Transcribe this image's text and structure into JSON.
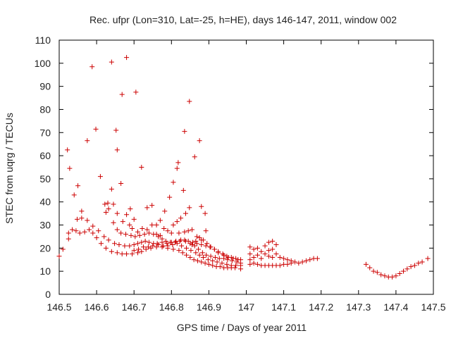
{
  "chart_data": {
    "type": "scatter",
    "title": "Rec. ufpr (Lon=310, Lat=-25, h=HE), days 146-147, 2011, window 002",
    "xlabel": "GPS time / Days of year 2011",
    "ylabel": "STEC from uqrg / TECUs",
    "xlim": [
      146.5,
      147.5
    ],
    "ylim": [
      0,
      110
    ],
    "xticks": [
      "146.5",
      "146.6",
      "146.7",
      "146.8",
      "146.9",
      "147",
      "147.1",
      "147.2",
      "147.3",
      "147.4",
      "147.5"
    ],
    "yticks": [
      "0",
      "10",
      "20",
      "30",
      "40",
      "50",
      "60",
      "70",
      "80",
      "90",
      "100",
      "110"
    ],
    "grid": false,
    "marker": "+",
    "color": "#cc0000",
    "series": [
      {
        "points": [
          [
            146.5,
            16.5
          ],
          [
            146.51,
            19.5
          ],
          [
            146.525,
            24.0
          ],
          [
            146.525,
            26.5
          ],
          [
            146.535,
            28.0
          ],
          [
            146.545,
            27.5
          ],
          [
            146.555,
            26.5
          ],
          [
            146.568,
            27.0
          ],
          [
            146.58,
            28.0
          ],
          [
            146.59,
            26.5
          ],
          [
            146.6,
            24.5
          ],
          [
            146.612,
            22.0
          ],
          [
            146.625,
            20.0
          ],
          [
            146.64,
            18.5
          ],
          [
            146.655,
            18.0
          ],
          [
            146.668,
            17.5
          ],
          [
            146.68,
            17.5
          ],
          [
            146.695,
            17.5
          ],
          [
            146.71,
            18.0
          ],
          [
            146.72,
            18.5
          ],
          [
            146.732,
            19.5
          ],
          [
            146.745,
            20.0
          ],
          [
            146.76,
            20.5
          ],
          [
            146.775,
            20.5
          ],
          [
            146.79,
            20.0
          ],
          [
            146.805,
            19.5
          ],
          [
            146.82,
            19.0
          ],
          [
            146.83,
            18.0
          ],
          [
            146.84,
            17.0
          ],
          [
            146.85,
            16.0
          ],
          [
            146.86,
            15.0
          ],
          [
            146.87,
            14.5
          ],
          [
            146.88,
            14.0
          ],
          [
            146.89,
            13.5
          ],
          [
            146.9,
            13.0
          ],
          [
            146.91,
            12.5
          ],
          [
            146.92,
            12.0
          ],
          [
            146.93,
            12.0
          ],
          [
            146.94,
            11.5
          ],
          [
            146.95,
            11.5
          ],
          [
            146.96,
            11.5
          ],
          [
            146.97,
            11.5
          ],
          [
            146.985,
            11.0
          ],
          [
            146.522,
            62.5
          ],
          [
            146.528,
            54.5
          ],
          [
            146.54,
            43.0
          ],
          [
            146.55,
            47.0
          ],
          [
            146.56,
            36.0
          ],
          [
            146.575,
            32.0
          ],
          [
            146.59,
            29.5
          ],
          [
            146.605,
            27.5
          ],
          [
            146.62,
            25.0
          ],
          [
            146.632,
            23.5
          ],
          [
            146.648,
            22.0
          ],
          [
            146.66,
            21.5
          ],
          [
            146.675,
            21.0
          ],
          [
            146.688,
            21.0
          ],
          [
            146.7,
            21.5
          ],
          [
            146.71,
            22.0
          ],
          [
            146.72,
            22.5
          ],
          [
            146.73,
            23.0
          ],
          [
            146.74,
            22.5
          ],
          [
            146.752,
            22.0
          ],
          [
            146.765,
            21.5
          ],
          [
            146.778,
            21.0
          ],
          [
            146.79,
            21.0
          ],
          [
            146.803,
            21.5
          ],
          [
            146.815,
            22.0
          ],
          [
            146.827,
            21.0
          ],
          [
            146.84,
            20.0
          ],
          [
            146.852,
            19.0
          ],
          [
            146.865,
            18.0
          ],
          [
            146.875,
            17.0
          ],
          [
            146.885,
            16.0
          ],
          [
            146.898,
            15.0
          ],
          [
            146.91,
            14.5
          ],
          [
            146.922,
            14.0
          ],
          [
            146.935,
            13.5
          ],
          [
            146.948,
            13.0
          ],
          [
            146.96,
            12.5
          ],
          [
            146.972,
            12.5
          ],
          [
            146.985,
            12.5
          ],
          [
            146.548,
            32.5
          ],
          [
            146.56,
            33.0
          ],
          [
            146.575,
            66.5
          ],
          [
            146.588,
            98.5
          ],
          [
            146.598,
            71.5
          ],
          [
            146.61,
            51.0
          ],
          [
            146.622,
            39.0
          ],
          [
            146.632,
            37.0
          ],
          [
            146.645,
            31.0
          ],
          [
            146.655,
            28.0
          ],
          [
            146.665,
            26.5
          ],
          [
            146.678,
            26.0
          ],
          [
            146.692,
            25.5
          ],
          [
            146.703,
            25.0
          ],
          [
            146.715,
            25.5
          ],
          [
            146.728,
            26.0
          ],
          [
            146.74,
            26.5
          ],
          [
            146.752,
            26.0
          ],
          [
            146.765,
            25.0
          ],
          [
            146.775,
            24.0
          ],
          [
            146.785,
            23.0
          ],
          [
            146.797,
            22.5
          ],
          [
            146.81,
            22.5
          ],
          [
            146.822,
            23.0
          ],
          [
            146.835,
            23.5
          ],
          [
            146.845,
            23.0
          ],
          [
            146.857,
            22.5
          ],
          [
            146.868,
            22.0
          ],
          [
            146.88,
            21.5
          ],
          [
            146.892,
            21.0
          ],
          [
            146.903,
            20.5
          ],
          [
            146.915,
            19.5
          ],
          [
            146.925,
            18.5
          ],
          [
            146.937,
            17.5
          ],
          [
            146.948,
            16.5
          ],
          [
            146.96,
            16.0
          ],
          [
            146.972,
            15.5
          ],
          [
            146.985,
            15.0
          ],
          [
            146.64,
            100.5
          ],
          [
            146.652,
            71.0
          ],
          [
            146.655,
            62.5
          ],
          [
            146.665,
            48.0
          ],
          [
            146.668,
            86.5
          ],
          [
            146.68,
            102.5
          ],
          [
            146.69,
            37.0
          ],
          [
            146.705,
            87.5
          ],
          [
            146.72,
            55.0
          ],
          [
            146.7,
            32.5
          ],
          [
            146.688,
            30.0
          ],
          [
            146.67,
            31.5
          ],
          [
            146.655,
            35.0
          ],
          [
            146.645,
            39.0
          ],
          [
            146.64,
            45.5
          ],
          [
            146.63,
            39.5
          ],
          [
            146.625,
            35.5
          ],
          [
            146.68,
            34.5
          ],
          [
            146.695,
            28.5
          ],
          [
            146.71,
            27.0
          ],
          [
            146.722,
            28.5
          ],
          [
            146.735,
            28.0
          ],
          [
            146.748,
            30.0
          ],
          [
            146.76,
            30.0
          ],
          [
            146.77,
            32.0
          ],
          [
            146.735,
            37.5
          ],
          [
            146.748,
            38.5
          ],
          [
            146.782,
            36.0
          ],
          [
            146.795,
            42.0
          ],
          [
            146.805,
            48.5
          ],
          [
            146.815,
            54.5
          ],
          [
            146.818,
            57.0
          ],
          [
            146.832,
            45.0
          ],
          [
            146.835,
            70.5
          ],
          [
            146.848,
            83.5
          ],
          [
            146.862,
            59.5
          ],
          [
            146.875,
            66.5
          ],
          [
            146.88,
            38.0
          ],
          [
            146.89,
            35.0
          ],
          [
            146.805,
            30.0
          ],
          [
            146.815,
            31.5
          ],
          [
            146.825,
            33.0
          ],
          [
            146.838,
            35.0
          ],
          [
            146.848,
            37.5
          ],
          [
            146.82,
            26.5
          ],
          [
            146.835,
            27.0
          ],
          [
            146.845,
            27.5
          ],
          [
            146.855,
            28.0
          ],
          [
            146.868,
            25.0
          ],
          [
            146.88,
            23.5
          ],
          [
            146.892,
            27.5
          ],
          [
            146.78,
            28.5
          ],
          [
            146.79,
            27.5
          ],
          [
            146.8,
            26.5
          ],
          [
            146.76,
            26.0
          ],
          [
            146.77,
            25.5
          ],
          [
            146.7,
            19.0
          ],
          [
            146.712,
            19.5
          ],
          [
            146.725,
            20.5
          ],
          [
            146.738,
            20.5
          ],
          [
            146.75,
            21.0
          ],
          [
            146.762,
            22.0
          ],
          [
            146.775,
            22.5
          ],
          [
            146.788,
            22.0
          ],
          [
            146.8,
            22.5
          ],
          [
            146.812,
            23.0
          ],
          [
            146.825,
            23.5
          ],
          [
            146.838,
            23.0
          ],
          [
            146.85,
            22.0
          ],
          [
            146.862,
            21.0
          ],
          [
            146.872,
            19.5
          ],
          [
            146.883,
            18.0
          ],
          [
            146.893,
            17.0
          ],
          [
            146.905,
            16.5
          ],
          [
            146.917,
            16.0
          ],
          [
            146.928,
            15.5
          ],
          [
            146.94,
            15.5
          ],
          [
            146.95,
            15.0
          ],
          [
            146.962,
            14.5
          ],
          [
            146.975,
            14.0
          ],
          [
            146.985,
            13.5
          ],
          [
            146.855,
            21.5
          ],
          [
            146.865,
            23.0
          ],
          [
            146.875,
            24.5
          ],
          [
            146.885,
            23.5
          ],
          [
            146.895,
            22.0
          ],
          [
            146.905,
            20.5
          ],
          [
            146.915,
            19.5
          ],
          [
            146.925,
            18.0
          ],
          [
            146.94,
            17.0
          ],
          [
            146.952,
            16.0
          ],
          [
            146.965,
            15.5
          ],
          [
            146.978,
            15.0
          ],
          [
            147.01,
            20.5
          ],
          [
            147.01,
            17.5
          ],
          [
            147.01,
            15.0
          ],
          [
            147.01,
            13.0
          ],
          [
            147.02,
            19.5
          ],
          [
            147.02,
            16.0
          ],
          [
            147.02,
            13.5
          ],
          [
            147.03,
            20.0
          ],
          [
            147.03,
            17.0
          ],
          [
            147.03,
            13.0
          ],
          [
            147.04,
            18.5
          ],
          [
            147.04,
            15.5
          ],
          [
            147.04,
            12.5
          ],
          [
            147.05,
            21.0
          ],
          [
            147.05,
            17.5
          ],
          [
            147.05,
            12.5
          ],
          [
            147.06,
            22.5
          ],
          [
            147.06,
            19.0
          ],
          [
            147.06,
            16.5
          ],
          [
            147.06,
            12.5
          ],
          [
            147.07,
            23.0
          ],
          [
            147.07,
            19.5
          ],
          [
            147.07,
            16.0
          ],
          [
            147.07,
            12.5
          ],
          [
            147.08,
            21.5
          ],
          [
            147.08,
            17.5
          ],
          [
            147.08,
            12.5
          ],
          [
            147.09,
            16.0
          ],
          [
            147.09,
            12.5
          ],
          [
            147.1,
            15.5
          ],
          [
            147.1,
            13.0
          ],
          [
            147.11,
            15.0
          ],
          [
            147.11,
            13.0
          ],
          [
            147.12,
            14.5
          ],
          [
            147.12,
            13.5
          ],
          [
            147.13,
            14.0
          ],
          [
            147.14,
            13.5
          ],
          [
            147.15,
            14.0
          ],
          [
            147.16,
            14.5
          ],
          [
            147.17,
            15.0
          ],
          [
            147.18,
            15.5
          ],
          [
            147.19,
            15.5
          ],
          [
            147.32,
            13.0
          ],
          [
            147.33,
            11.5
          ],
          [
            147.34,
            10.0
          ],
          [
            147.35,
            9.5
          ],
          [
            147.36,
            8.5
          ],
          [
            147.37,
            8.0
          ],
          [
            147.38,
            7.5
          ],
          [
            147.39,
            7.5
          ],
          [
            147.4,
            8.0
          ],
          [
            147.41,
            9.0
          ],
          [
            147.42,
            10.0
          ],
          [
            147.43,
            11.0
          ],
          [
            147.44,
            12.0
          ],
          [
            147.45,
            12.5
          ],
          [
            147.46,
            13.5
          ],
          [
            147.47,
            14.0
          ],
          [
            147.485,
            15.5
          ]
        ]
      }
    ]
  }
}
